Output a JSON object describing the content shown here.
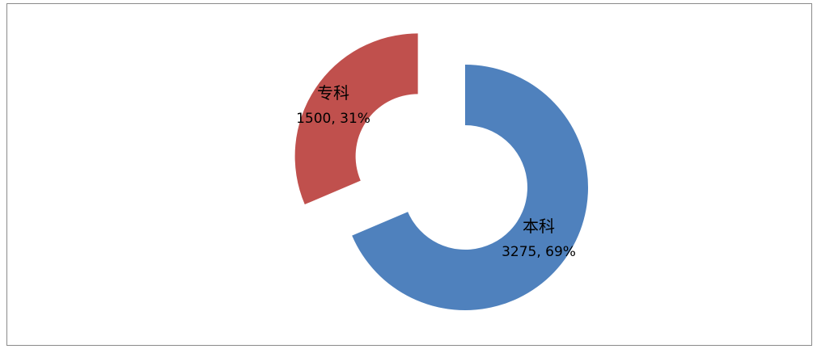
{
  "chart_data": {
    "type": "pie",
    "variant": "donut-exploded",
    "categories": [
      "本科",
      "专科"
    ],
    "values": [
      3275,
      1500
    ],
    "percentages": [
      "69%",
      "31%"
    ],
    "colors": [
      "#4F81BD",
      "#C0504D"
    ],
    "legend": "none",
    "data_labels": [
      {
        "name": "本科",
        "value_text": "3275",
        "pct_text": "69%"
      },
      {
        "name": "专科",
        "value_text": "1500",
        "pct_text": "31%"
      }
    ]
  }
}
